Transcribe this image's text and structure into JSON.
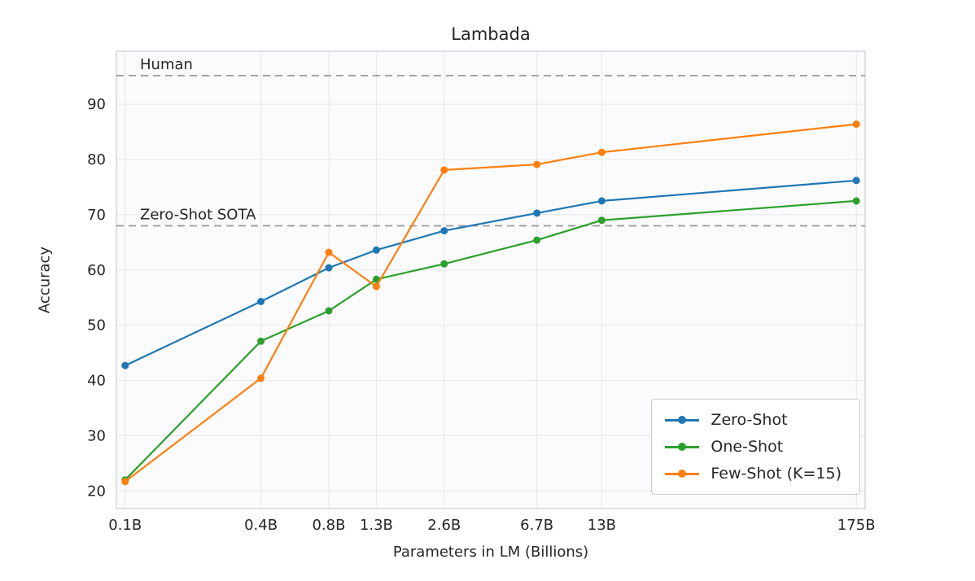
{
  "chart_data": {
    "type": "line",
    "title": "Lambada",
    "xlabel": "Parameters in LM (Billions)",
    "ylabel": "Accuracy",
    "x_scale": "log",
    "x_values": [
      0.1,
      0.4,
      0.8,
      1.3,
      2.6,
      6.7,
      13,
      175
    ],
    "x_tick_labels": [
      "0.1B",
      "0.4B",
      "0.8B",
      "1.3B",
      "2.6B",
      "6.7B",
      "13B",
      "175B"
    ],
    "y_ticks": [
      20,
      30,
      40,
      50,
      60,
      70,
      80,
      90
    ],
    "ylim": [
      16.8,
      99.6
    ],
    "grid": true,
    "legend_position": "lower right",
    "series": [
      {
        "name": "Zero-Shot",
        "color": "#1f77b4",
        "values": [
          42.7,
          54.3,
          60.4,
          63.6,
          67.1,
          70.3,
          72.5,
          76.2
        ]
      },
      {
        "name": "One-Shot",
        "color": "#2ca02c",
        "values": [
          22.0,
          47.1,
          52.6,
          58.3,
          61.1,
          65.4,
          69.0,
          72.5
        ]
      },
      {
        "name": "Few-Shot (K=15)",
        "color": "#ff7f0e",
        "values": [
          21.7,
          40.4,
          63.2,
          57.0,
          78.1,
          79.1,
          81.3,
          86.4
        ]
      }
    ],
    "reference_lines": [
      {
        "label": "Human",
        "value": 95.2,
        "color": "#999999",
        "style": "dashed"
      },
      {
        "label": "Zero-Shot SOTA",
        "value": 68.0,
        "color": "#999999",
        "style": "dashed"
      }
    ],
    "colors": {
      "grid": "#e7e7ec",
      "plot_background": "#fbfbfd",
      "plot_border": "#cfcfd6",
      "text": "#262626"
    }
  }
}
